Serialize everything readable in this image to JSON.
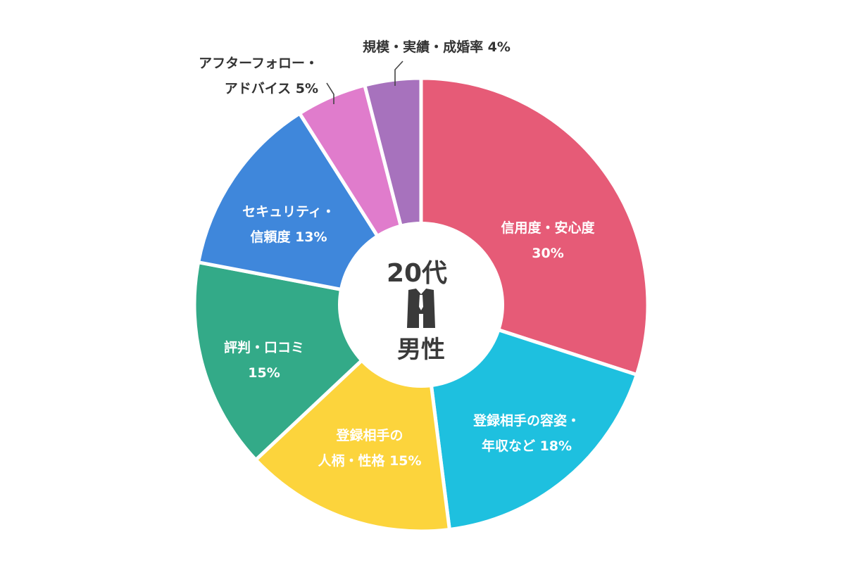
{
  "chart_data": {
    "type": "pie",
    "style": "donut",
    "legend": "none",
    "center": {
      "top_label": "20代",
      "icon": "suit-icon",
      "bottom_label": "男性"
    },
    "slices": [
      {
        "lines": [
          "信用度・安心度",
          "30%"
        ],
        "value": 30,
        "color": "#e65b77",
        "label_position": "inside"
      },
      {
        "lines": [
          "登録相手の容姿・",
          "年収など 18%"
        ],
        "value": 18,
        "color": "#1ec0df",
        "label_position": "inside"
      },
      {
        "lines": [
          "登録相手の",
          "人柄・性格 15%"
        ],
        "value": 15,
        "color": "#fcd43c",
        "label_position": "inside"
      },
      {
        "lines": [
          "評判・口コミ",
          "15%"
        ],
        "value": 15,
        "color": "#33aa88",
        "label_position": "inside"
      },
      {
        "lines": [
          "セキュリティ・",
          "信頼度 13%"
        ],
        "value": 13,
        "color": "#3f87db",
        "label_position": "inside"
      },
      {
        "lines": [
          "アフターフォロー・",
          "アドバイス 5%"
        ],
        "value": 5,
        "color": "#e07ccc",
        "label_position": "outside"
      },
      {
        "lines": [
          "規模・実績・成婚率 4%"
        ],
        "value": 4,
        "color": "#a772bd",
        "label_position": "outside"
      }
    ]
  }
}
